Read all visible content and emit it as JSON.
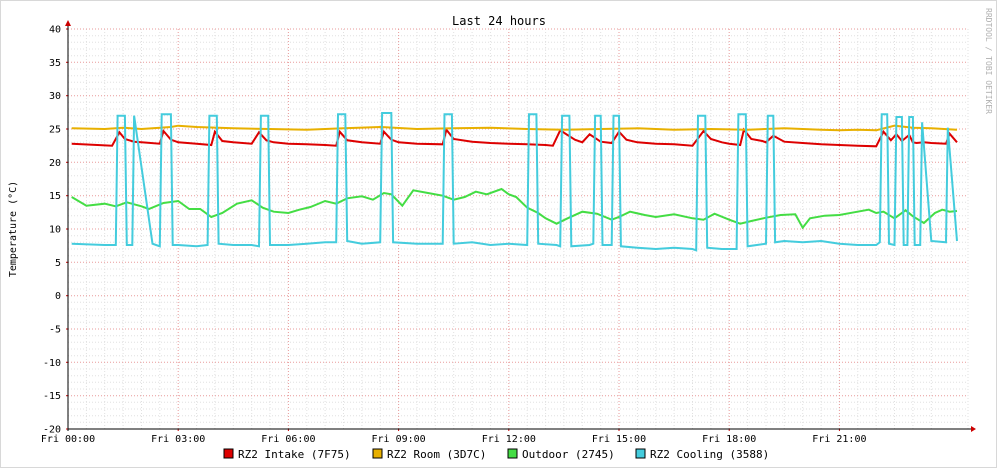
{
  "chart_data": {
    "type": "line",
    "title": "Last 24 hours",
    "ylabel": "Temperature (°C)",
    "xlabel": "",
    "watermark": "RRDTOOL / TOBI OETIKER",
    "ylim": [
      -20,
      40
    ],
    "y_ticks": [
      -20,
      -15,
      -10,
      -5,
      0,
      5,
      10,
      15,
      20,
      25,
      30,
      35,
      40
    ],
    "x_range_hours": [
      0,
      24.5
    ],
    "x_tick_hours": [
      0,
      3,
      6,
      9,
      12,
      15,
      18,
      21
    ],
    "x_tick_labels": [
      "Fri 00:00",
      "Fri 03:00",
      "Fri 06:00",
      "Fri 09:00",
      "Fri 12:00",
      "Fri 15:00",
      "Fri 18:00",
      "Fri 21:00"
    ],
    "grid": true,
    "legend_position": "bottom",
    "series": [
      {
        "name": "RZ2 Intake (7F75)",
        "color": "#dd0000",
        "x": [
          0.1,
          0.8,
          1.2,
          1.4,
          1.55,
          1.8,
          2.0,
          2.5,
          2.6,
          2.8,
          3.0,
          3.5,
          3.9,
          4.0,
          4.2,
          4.5,
          5.0,
          5.2,
          5.4,
          5.6,
          6.0,
          6.5,
          7.0,
          7.3,
          7.4,
          7.6,
          8.0,
          8.5,
          8.6,
          8.8,
          9.0,
          9.5,
          10.2,
          10.3,
          10.5,
          11.0,
          11.5,
          12.0,
          12.5,
          13.0,
          13.2,
          13.4,
          13.8,
          14.0,
          14.2,
          14.5,
          14.8,
          15.0,
          15.2,
          15.5,
          16.0,
          16.5,
          17.0,
          17.3,
          17.5,
          17.8,
          18.0,
          18.3,
          18.4,
          18.6,
          18.9,
          19.0,
          19.2,
          19.5,
          20.0,
          20.5,
          21.0,
          21.5,
          22.0,
          22.2,
          22.4,
          22.55,
          22.7,
          22.9,
          23.0,
          23.1,
          23.3,
          23.5,
          23.9,
          24.0,
          24.2
        ],
        "values": [
          22.8,
          22.6,
          22.5,
          24.5,
          23.5,
          23.1,
          23.0,
          22.8,
          24.7,
          23.4,
          23.0,
          22.8,
          22.6,
          24.6,
          23.2,
          23.0,
          22.8,
          24.5,
          23.3,
          23.0,
          22.8,
          22.7,
          22.6,
          22.5,
          24.6,
          23.3,
          23.0,
          22.8,
          24.6,
          23.4,
          23.0,
          22.8,
          22.7,
          24.9,
          23.5,
          23.1,
          22.9,
          22.8,
          22.7,
          22.6,
          22.5,
          24.8,
          23.4,
          23.0,
          24.2,
          23.1,
          22.9,
          24.6,
          23.4,
          23.0,
          22.8,
          22.7,
          22.5,
          24.7,
          23.5,
          23.0,
          22.8,
          22.6,
          24.9,
          23.5,
          23.2,
          23.0,
          24.0,
          23.1,
          22.9,
          22.7,
          22.6,
          22.5,
          22.4,
          24.6,
          23.3,
          24.2,
          23.2,
          24.1,
          23.0,
          22.9,
          23.0,
          22.9,
          22.8,
          24.3,
          23.0
        ]
      },
      {
        "name": "RZ2 Room (3D7C)",
        "color": "#e8b000",
        "x": [
          0.1,
          1.0,
          1.5,
          2.0,
          2.8,
          3.0,
          3.5,
          4.5,
          5.5,
          6.5,
          7.5,
          8.5,
          9.5,
          10.5,
          11.5,
          12.5,
          13.5,
          14.5,
          15.5,
          16.5,
          17.5,
          18.5,
          19.5,
          20.5,
          21.0,
          21.5,
          22.0,
          22.5,
          23.0,
          23.5,
          24.2
        ],
        "values": [
          25.1,
          25.0,
          25.2,
          25.0,
          25.3,
          25.5,
          25.3,
          25.1,
          25.0,
          24.9,
          25.1,
          25.3,
          25.0,
          25.1,
          25.2,
          25.0,
          24.9,
          25.0,
          25.1,
          24.9,
          25.0,
          24.9,
          25.1,
          24.9,
          24.8,
          24.9,
          24.8,
          25.5,
          25.2,
          25.1,
          24.9
        ]
      },
      {
        "name": "Outdoor (2745)",
        "color": "#44dd44",
        "x": [
          0.1,
          0.5,
          1.0,
          1.3,
          1.6,
          2.0,
          2.2,
          2.6,
          3.0,
          3.3,
          3.6,
          3.9,
          4.2,
          4.6,
          5.0,
          5.3,
          5.6,
          6.0,
          6.3,
          6.6,
          7.0,
          7.3,
          7.6,
          8.0,
          8.3,
          8.6,
          8.8,
          9.1,
          9.4,
          9.8,
          10.2,
          10.5,
          10.8,
          11.1,
          11.4,
          11.8,
          12.0,
          12.2,
          12.5,
          12.8,
          13.0,
          13.3,
          13.6,
          14.0,
          14.4,
          14.8,
          15.0,
          15.3,
          15.7,
          16.0,
          16.5,
          17.0,
          17.3,
          17.6,
          18.0,
          18.3,
          18.6,
          19.0,
          19.4,
          19.8,
          20.0,
          20.2,
          20.6,
          21.0,
          21.4,
          21.8,
          22.0,
          22.2,
          22.5,
          22.8,
          23.0,
          23.3,
          23.6,
          23.8,
          24.0,
          24.2
        ],
        "values": [
          14.8,
          13.5,
          13.8,
          13.4,
          14.0,
          13.4,
          13.0,
          13.9,
          14.2,
          13.0,
          13.0,
          11.8,
          12.4,
          13.8,
          14.3,
          13.2,
          12.6,
          12.4,
          12.9,
          13.3,
          14.2,
          13.8,
          14.6,
          14.9,
          14.4,
          15.4,
          15.2,
          13.5,
          15.8,
          15.4,
          15.0,
          14.4,
          14.8,
          15.6,
          15.2,
          16.0,
          15.2,
          14.8,
          13.2,
          12.4,
          11.6,
          10.8,
          11.6,
          12.6,
          12.3,
          11.4,
          11.8,
          12.6,
          12.1,
          11.8,
          12.2,
          11.6,
          11.4,
          12.3,
          11.4,
          10.8,
          11.2,
          11.7,
          12.1,
          12.2,
          10.2,
          11.6,
          12.0,
          12.1,
          12.5,
          12.9,
          12.4,
          12.6,
          11.6,
          12.8,
          11.9,
          10.9,
          12.4,
          12.9,
          12.6,
          12.7
        ]
      },
      {
        "name": "RZ2 Cooling (3588)",
        "color": "#44ccdd",
        "x": [
          0.1,
          1.0,
          1.3,
          1.35,
          1.55,
          1.6,
          1.75,
          1.8,
          2.3,
          2.5,
          2.55,
          2.8,
          2.85,
          3.0,
          3.5,
          3.8,
          3.85,
          4.05,
          4.1,
          4.5,
          5.0,
          5.2,
          5.25,
          5.45,
          5.5,
          6.0,
          6.5,
          7.0,
          7.3,
          7.35,
          7.55,
          7.6,
          8.0,
          8.5,
          8.55,
          8.8,
          8.85,
          9.5,
          10.2,
          10.25,
          10.45,
          10.5,
          11.0,
          11.5,
          12.0,
          12.5,
          12.55,
          12.75,
          12.8,
          13.3,
          13.4,
          13.45,
          13.65,
          13.7,
          14.2,
          14.3,
          14.35,
          14.5,
          14.55,
          14.8,
          14.85,
          15.0,
          15.05,
          15.5,
          16.0,
          16.5,
          17.0,
          17.1,
          17.15,
          17.35,
          17.4,
          17.8,
          18.2,
          18.25,
          18.45,
          18.5,
          19.0,
          19.05,
          19.2,
          19.25,
          19.5,
          20.0,
          20.5,
          21.0,
          21.5,
          22.0,
          22.1,
          22.15,
          22.3,
          22.35,
          22.5,
          22.55,
          22.7,
          22.75,
          22.85,
          22.9,
          23.0,
          23.05,
          23.2,
          23.25,
          23.5,
          23.9,
          23.95,
          24.2
        ],
        "values": [
          7.8,
          7.6,
          7.6,
          27.0,
          27.0,
          7.6,
          7.6,
          27.0,
          7.8,
          7.4,
          27.2,
          27.2,
          7.6,
          7.6,
          7.4,
          7.6,
          27.0,
          27.0,
          7.8,
          7.6,
          7.6,
          7.4,
          27.0,
          27.0,
          7.6,
          7.6,
          7.8,
          8.0,
          8.0,
          27.2,
          27.2,
          8.2,
          7.8,
          8.0,
          27.4,
          27.4,
          8.0,
          7.8,
          7.8,
          27.2,
          27.2,
          7.8,
          8.0,
          7.6,
          7.8,
          7.6,
          27.2,
          27.2,
          7.8,
          7.6,
          7.4,
          27.0,
          27.0,
          7.4,
          7.6,
          7.8,
          27.0,
          27.0,
          7.6,
          7.6,
          27.0,
          27.0,
          7.4,
          7.2,
          7.0,
          7.2,
          7.0,
          6.8,
          27.0,
          27.0,
          7.2,
          7.0,
          7.0,
          27.2,
          27.2,
          7.4,
          7.8,
          27.0,
          27.0,
          8.0,
          8.2,
          8.0,
          8.2,
          7.8,
          7.6,
          7.6,
          8.0,
          27.2,
          27.2,
          7.8,
          7.6,
          26.8,
          26.8,
          7.6,
          7.6,
          26.8,
          26.8,
          7.6,
          7.6,
          26.0,
          8.2,
          8.0,
          25.2,
          8.2
        ]
      }
    ]
  }
}
